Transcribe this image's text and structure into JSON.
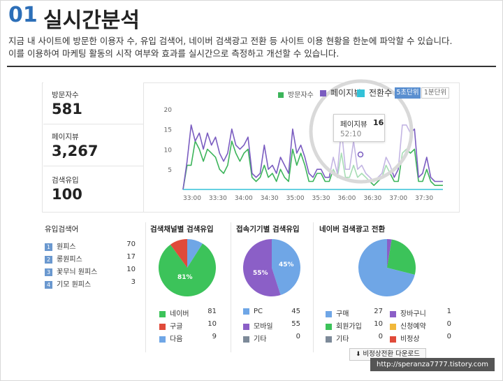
{
  "header": {
    "number": "01",
    "title": "실시간분석",
    "desc_line1": "지금 내 사이트에 방문한 이용자 수, 유입 검색어, 네이버 검색광고 전환 등 사이트 이용 현황을 한눈에 파악할 수 있습니다.",
    "desc_line2": "이를 이용하여 마케팅 활동의 시작 여부와 효과를 실시간으로 측정하고 개선할 수 있습니다."
  },
  "stats": [
    {
      "label": "방문자수",
      "value": "581"
    },
    {
      "label": "페이지뷰",
      "value": "3,267"
    },
    {
      "label": "검색유입",
      "value": "100"
    }
  ],
  "chart_legend": {
    "visitors": "방문자수",
    "pageviews": "페이지뷰",
    "conversions": "전환수",
    "unit_5s": "5초단위",
    "unit_1m": "1분단위"
  },
  "tooltip": {
    "label": "페이지뷰",
    "value": "16",
    "time": "52:10"
  },
  "chart_data": {
    "type": "line",
    "x_ticks": [
      "33:00",
      "33:30",
      "34:00",
      "34:30",
      "35:00",
      "35:30",
      "36:00",
      "36:30",
      "37:00",
      "37:30"
    ],
    "y_ticks": [
      5,
      10,
      15,
      20
    ],
    "ylim": [
      0,
      21
    ],
    "series": [
      {
        "name": "방문자수",
        "color": "#3cb45a",
        "values": [
          0,
          6,
          6,
          12,
          10,
          7,
          10,
          9,
          8,
          5,
          4,
          6,
          12,
          9,
          7,
          9,
          10,
          3,
          2,
          3,
          6,
          3,
          4,
          2,
          5,
          3,
          2,
          10,
          6,
          9,
          6,
          2,
          2,
          4,
          4,
          2,
          2,
          5,
          3,
          9,
          3,
          3,
          6,
          3,
          4,
          3,
          2,
          1,
          2,
          3,
          6,
          4,
          2,
          2,
          9,
          10,
          9,
          10,
          2,
          2,
          5,
          2,
          1,
          1,
          1
        ]
      },
      {
        "name": "페이지뷰",
        "color": "#7a5cc0",
        "values": [
          0,
          7,
          16,
          12,
          14,
          10,
          14,
          11,
          13,
          9,
          7,
          9,
          15,
          11,
          10,
          11,
          13,
          4,
          3,
          4,
          11,
          5,
          6,
          4,
          8,
          6,
          4,
          15,
          9,
          11,
          8,
          4,
          3,
          5,
          5,
          3,
          3,
          8,
          4,
          15,
          5,
          5,
          12,
          5,
          6,
          4,
          3,
          2,
          3,
          4,
          8,
          6,
          3,
          5,
          16,
          16,
          14,
          15,
          3,
          4,
          8,
          3,
          2,
          2,
          2
        ]
      },
      {
        "name": "전환수",
        "color": "#33c2d8",
        "values": [
          0,
          0,
          0,
          0,
          0,
          0,
          0,
          0,
          0,
          0,
          0,
          0,
          0,
          0,
          0,
          0,
          0,
          0,
          0,
          0,
          0,
          0,
          0,
          0,
          0,
          0,
          0,
          0,
          0,
          0,
          0,
          0,
          0,
          0,
          0,
          0,
          0,
          0,
          0,
          0,
          0,
          0,
          0,
          0,
          0,
          0,
          0,
          0,
          0,
          0,
          0,
          0,
          0,
          0,
          0,
          0,
          0,
          0,
          0,
          0,
          0,
          0,
          0,
          0,
          0
        ]
      }
    ]
  },
  "keywords": {
    "title": "유입검색어",
    "items": [
      {
        "rank": "1",
        "term": "원피스",
        "count": "70"
      },
      {
        "rank": "2",
        "term": "롱원피스",
        "count": "17"
      },
      {
        "rank": "3",
        "term": "꽃무늬 원피스",
        "count": "10"
      },
      {
        "rank": "4",
        "term": "기모 원피스",
        "count": "3"
      }
    ]
  },
  "channels": {
    "title": "검색채널별 검색유입",
    "pie_label": "81%",
    "items": [
      {
        "label": "네이버",
        "value": "81",
        "color": "#3cc35a"
      },
      {
        "label": "구글",
        "value": "10",
        "color": "#e04a3a"
      },
      {
        "label": "다음",
        "value": "9",
        "color": "#6fa6e6"
      }
    ]
  },
  "devices": {
    "title": "접속기기별 검색유입",
    "pie_label_a": "45%",
    "pie_label_b": "55%",
    "items": [
      {
        "label": "PC",
        "value": "45",
        "color": "#6fa6e6"
      },
      {
        "label": "모바일",
        "value": "55",
        "color": "#8b5fc7"
      },
      {
        "label": "기타",
        "value": "0",
        "color": "#7d8a99"
      }
    ]
  },
  "conversions": {
    "title": "네이버 검색광고 전환",
    "items_left": [
      {
        "label": "구매",
        "value": "27",
        "color": "#6fa6e6"
      },
      {
        "label": "회원가입",
        "value": "10",
        "color": "#3cc35a"
      },
      {
        "label": "기타",
        "value": "0",
        "color": "#7d8a99"
      }
    ],
    "items_right": [
      {
        "label": "장바구니",
        "value": "1",
        "color": "#8b5fc7"
      },
      {
        "label": "신청예약",
        "value": "0",
        "color": "#f1b83a"
      },
      {
        "label": "비정상",
        "value": "0",
        "color": "#e04a3a"
      }
    ],
    "download_label": "비정상전환 다운로드"
  },
  "watermark": "http://speranza7777.tistory.com"
}
